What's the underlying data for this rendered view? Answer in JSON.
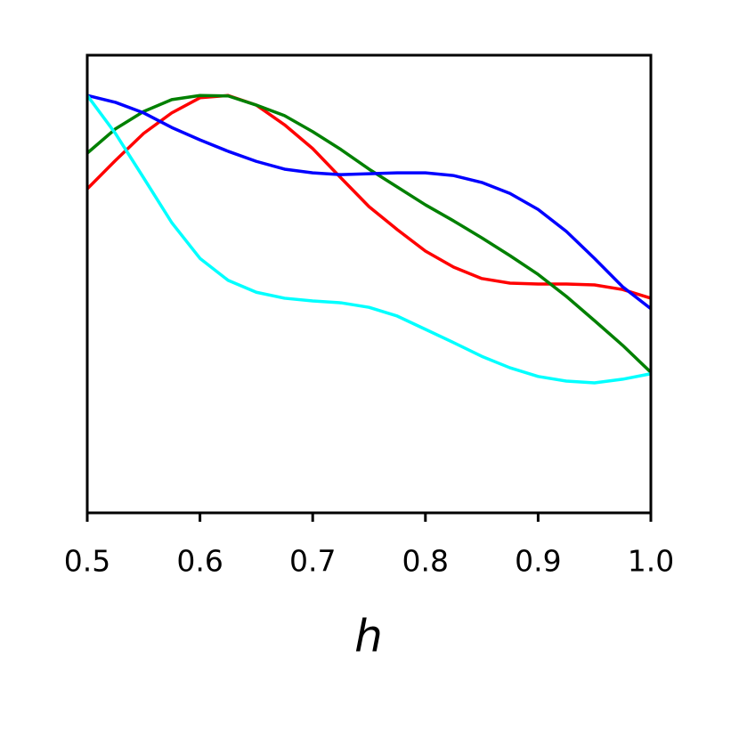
{
  "chart_data": {
    "type": "line",
    "xlabel": "h",
    "x": [
      0.5,
      0.525,
      0.55,
      0.575,
      0.6,
      0.625,
      0.65,
      0.675,
      0.7,
      0.725,
      0.75,
      0.775,
      0.8,
      0.825,
      0.85,
      0.875,
      0.9,
      0.925,
      0.95,
      0.975,
      1.0
    ],
    "xlim": [
      0.5,
      1.0
    ],
    "xticks": [
      0.5,
      0.6,
      0.7,
      0.8,
      0.9,
      {
        "value": 1,
        "label": "1.0"
      }
    ],
    "ylim": [
      0,
      1
    ],
    "series": [
      {
        "color": "#ff0000",
        "values": [
          0.708,
          0.77,
          0.829,
          0.874,
          0.907,
          0.912,
          0.891,
          0.848,
          0.796,
          0.732,
          0.669,
          0.619,
          0.572,
          0.537,
          0.512,
          0.502,
          0.5,
          0.5,
          0.498,
          0.488,
          0.469
        ]
      },
      {
        "color": "#008000",
        "values": [
          0.786,
          0.839,
          0.877,
          0.903,
          0.912,
          0.911,
          0.891,
          0.868,
          0.833,
          0.794,
          0.751,
          0.712,
          0.673,
          0.638,
          0.601,
          0.562,
          0.521,
          0.473,
          0.42,
          0.366,
          0.307
        ]
      },
      {
        "color": "#0000ff",
        "values": [
          0.912,
          0.897,
          0.874,
          0.842,
          0.815,
          0.79,
          0.768,
          0.751,
          0.743,
          0.739,
          0.741,
          0.743,
          0.743,
          0.737,
          0.722,
          0.698,
          0.663,
          0.615,
          0.556,
          0.494,
          0.446
        ]
      },
      {
        "color": "#00ffff",
        "values": [
          0.912,
          0.829,
          0.732,
          0.634,
          0.556,
          0.508,
          0.482,
          0.469,
          0.463,
          0.459,
          0.449,
          0.43,
          0.401,
          0.372,
          0.342,
          0.317,
          0.298,
          0.288,
          0.284,
          0.292,
          0.304
        ]
      }
    ]
  }
}
